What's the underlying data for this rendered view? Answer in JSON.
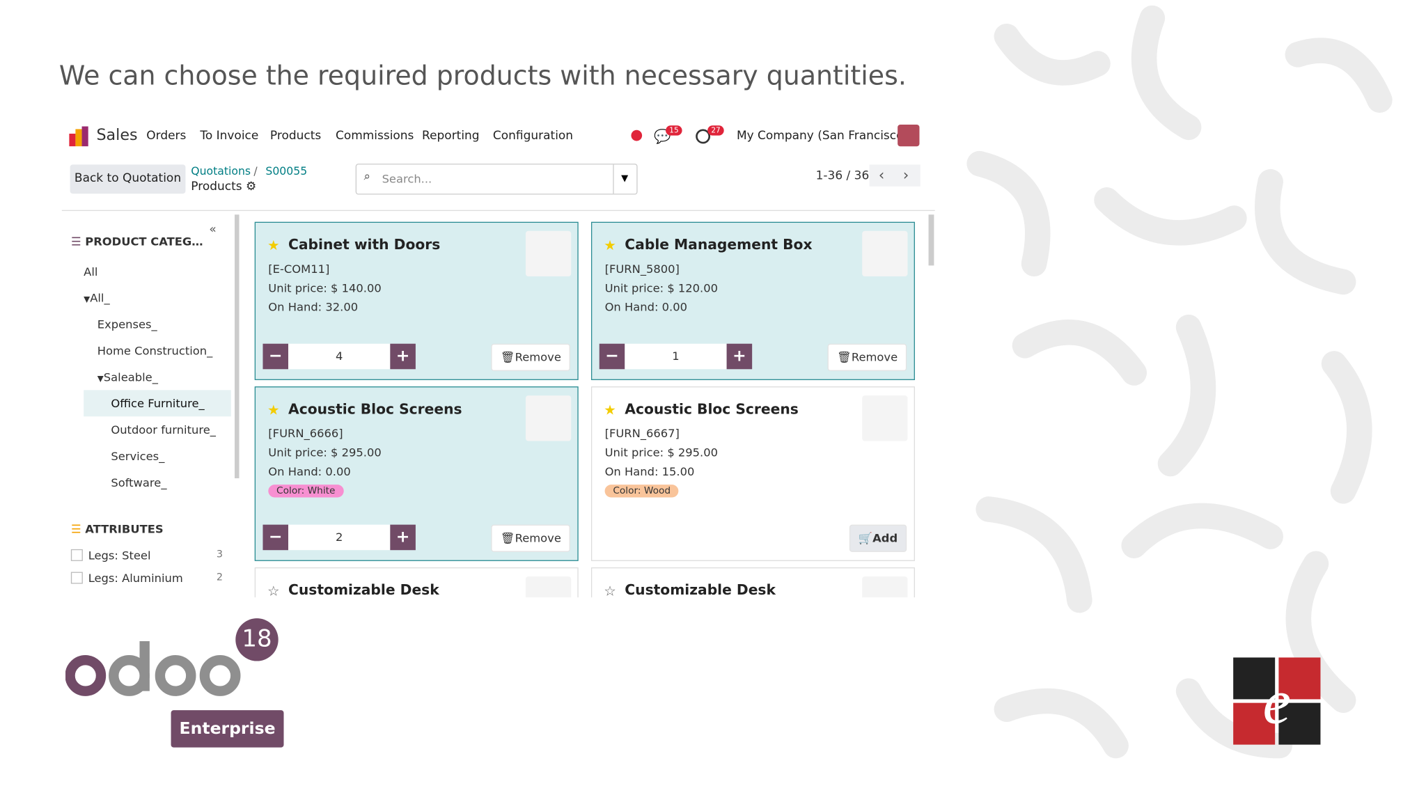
{
  "caption": "We can choose the required products with necessary quantities.",
  "navbar": {
    "app": "Sales",
    "menu": [
      "Orders",
      "To Invoice",
      "Products",
      "Commissions",
      "Reporting",
      "Configuration"
    ],
    "messages_badge": "15",
    "activity_badge": "27",
    "company": "My Company (San Francisco)"
  },
  "control_panel": {
    "back_button": "Back to Quotation",
    "breadcrumb": [
      "Quotations",
      "S00055"
    ],
    "current": "Products",
    "search_placeholder": "Search...",
    "pager": "1-36 / 36"
  },
  "sidebar": {
    "categories_title": "PRODUCT CATEGORIES",
    "categories": [
      {
        "label": "All"
      },
      {
        "label": "All_",
        "children": [
          {
            "label": "Expenses_"
          },
          {
            "label": "Home Construction_"
          },
          {
            "label": "Saleable_",
            "children": [
              {
                "label": "Office Furniture_",
                "selected": true
              },
              {
                "label": "Outdoor furniture_"
              },
              {
                "label": "Services_"
              },
              {
                "label": "Software_"
              }
            ]
          }
        ]
      }
    ],
    "attributes_title": "ATTRIBUTES",
    "attributes": [
      {
        "label": "Legs: Steel",
        "count": 3
      },
      {
        "label": "Legs: Aluminium",
        "count": 2
      }
    ]
  },
  "products": [
    {
      "name": "Cabinet with Doors",
      "ref": "[E-COM11]",
      "price": "Unit price: $ 140.00",
      "on_hand": "On Hand: 32.00",
      "starred": true,
      "qty": 4,
      "button": "Remove"
    },
    {
      "name": "Cable Management Box",
      "ref": "[FURN_5800]",
      "price": "Unit price: $ 120.00",
      "on_hand": "On Hand: 0.00",
      "starred": true,
      "qty": 1,
      "button": "Remove"
    },
    {
      "name": "Acoustic Bloc Screens",
      "ref": "[FURN_6666]",
      "price": "Unit price: $ 295.00",
      "on_hand": "On Hand: 0.00",
      "tag": "Color: White",
      "tag_color": "#f78fd1",
      "starred": true,
      "qty": 2,
      "button": "Remove"
    },
    {
      "name": "Acoustic Bloc Screens",
      "ref": "[FURN_6667]",
      "price": "Unit price: $ 295.00",
      "on_hand": "On Hand: 15.00",
      "tag": "Color: Wood",
      "tag_color": "#f9c49a",
      "starred": true,
      "button": "Add"
    },
    {
      "name": "Customizable Desk",
      "starred": false
    },
    {
      "name": "Customizable Desk",
      "starred": false
    }
  ],
  "logo": {
    "version": "18",
    "edition": "Enterprise"
  }
}
